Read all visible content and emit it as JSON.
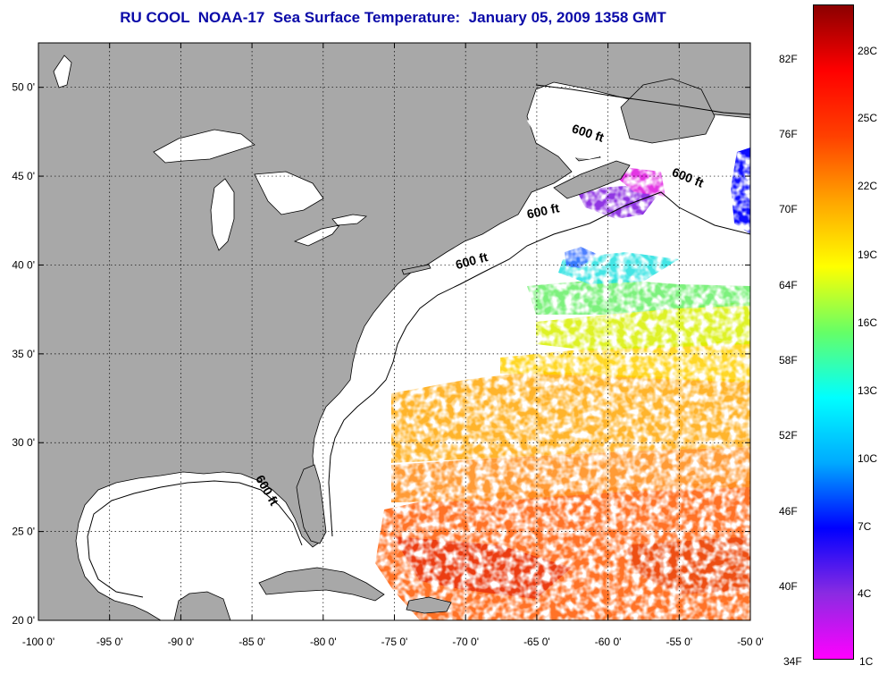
{
  "title": "RU COOL  NOAA-17  Sea Surface Temperature:  January 05, 2009 1358 GMT",
  "map": {
    "lon_range": [
      -100,
      -50
    ],
    "lat_range": [
      20,
      52.5
    ],
    "x_ticks": [
      {
        "value": -100,
        "label": "-100 0'"
      },
      {
        "value": -95,
        "label": "-95 0'"
      },
      {
        "value": -90,
        "label": "-90 0'"
      },
      {
        "value": -85,
        "label": "-85 0'"
      },
      {
        "value": -80,
        "label": "-80 0'"
      },
      {
        "value": -75,
        "label": "-75 0'"
      },
      {
        "value": -70,
        "label": "-70 0'"
      },
      {
        "value": -65,
        "label": "-65 0'"
      },
      {
        "value": -60,
        "label": "-60 0'"
      },
      {
        "value": -55,
        "label": "-55 0'"
      },
      {
        "value": -50,
        "label": "-50 0'"
      }
    ],
    "y_ticks": [
      {
        "value": 50,
        "label": "50 0'"
      },
      {
        "value": 45,
        "label": "45 0'"
      },
      {
        "value": 40,
        "label": "40 0'"
      },
      {
        "value": 35,
        "label": "35 0'"
      },
      {
        "value": 30,
        "label": "30 0'"
      },
      {
        "value": 25,
        "label": "25 0'"
      },
      {
        "value": 20,
        "label": "20 0'"
      }
    ],
    "depth_labels": [
      {
        "text": "600 ft",
        "lon": -61.5,
        "lat": 47.2,
        "angle": 18
      },
      {
        "text": "600 ft",
        "lon": -54.5,
        "lat": 44.7,
        "angle": 22
      },
      {
        "text": "600 ft",
        "lon": -64.5,
        "lat": 42.8,
        "angle": -12
      },
      {
        "text": "600 ft",
        "lon": -69.5,
        "lat": 40.0,
        "angle": -15
      },
      {
        "text": "600 ft",
        "lon": -84.2,
        "lat": 27.2,
        "angle": 60
      }
    ],
    "colors": {
      "land": "#a8a8a8",
      "ocean": "#ffffff",
      "grid": "#000000"
    }
  },
  "colorbar": {
    "f_labels": [
      "82F",
      "76F",
      "70F",
      "64F",
      "58F",
      "52F",
      "46F",
      "40F",
      "34F"
    ],
    "c_labels": [
      "28C",
      "25C",
      "22C",
      "19C",
      "16C",
      "13C",
      "10C",
      "7C",
      "4C",
      "1C"
    ],
    "stops": [
      "#ff00ff",
      "#8a2be2",
      "#0000ff",
      "#00aaff",
      "#00ffff",
      "#66ff66",
      "#ffff00",
      "#ffa500",
      "#ff4000",
      "#ff0000",
      "#8b0000"
    ]
  }
}
